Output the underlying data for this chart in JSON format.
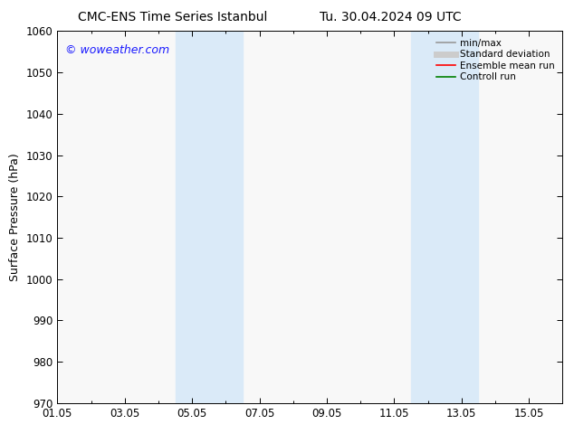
{
  "title_left": "CMC-ENS Time Series Istanbul",
  "title_right": "Tu. 30.04.2024 09 UTC",
  "ylabel": "Surface Pressure (hPa)",
  "ylim": [
    970,
    1060
  ],
  "yticks": [
    970,
    980,
    990,
    1000,
    1010,
    1020,
    1030,
    1040,
    1050,
    1060
  ],
  "xlim": [
    0,
    15
  ],
  "xtick_positions": [
    0,
    2,
    4,
    6,
    8,
    10,
    12,
    14
  ],
  "xtick_labels": [
    "01.05",
    "03.05",
    "05.05",
    "07.05",
    "09.05",
    "11.05",
    "13.05",
    "15.05"
  ],
  "shaded_bands": [
    {
      "xmin": 3.5,
      "xmax": 5.5
    },
    {
      "xmin": 10.5,
      "xmax": 12.5
    }
  ],
  "band_color": "#daeaf8",
  "watermark": "© woweather.com",
  "watermark_color": "#1a1aff",
  "legend_entries": [
    {
      "label": "min/max",
      "color": "#999999",
      "lw": 1.2,
      "style": "-"
    },
    {
      "label": "Standard deviation",
      "color": "#cccccc",
      "lw": 5,
      "style": "-"
    },
    {
      "label": "Ensemble mean run",
      "color": "#ff0000",
      "lw": 1.2,
      "style": "-"
    },
    {
      "label": "Controll run",
      "color": "#008000",
      "lw": 1.2,
      "style": "-"
    }
  ],
  "background_color": "#ffffff",
  "plot_bg_color": "#f8f8f8",
  "title_fontsize": 10,
  "ylabel_fontsize": 9,
  "tick_fontsize": 8.5,
  "legend_fontsize": 7.5,
  "watermark_fontsize": 9
}
